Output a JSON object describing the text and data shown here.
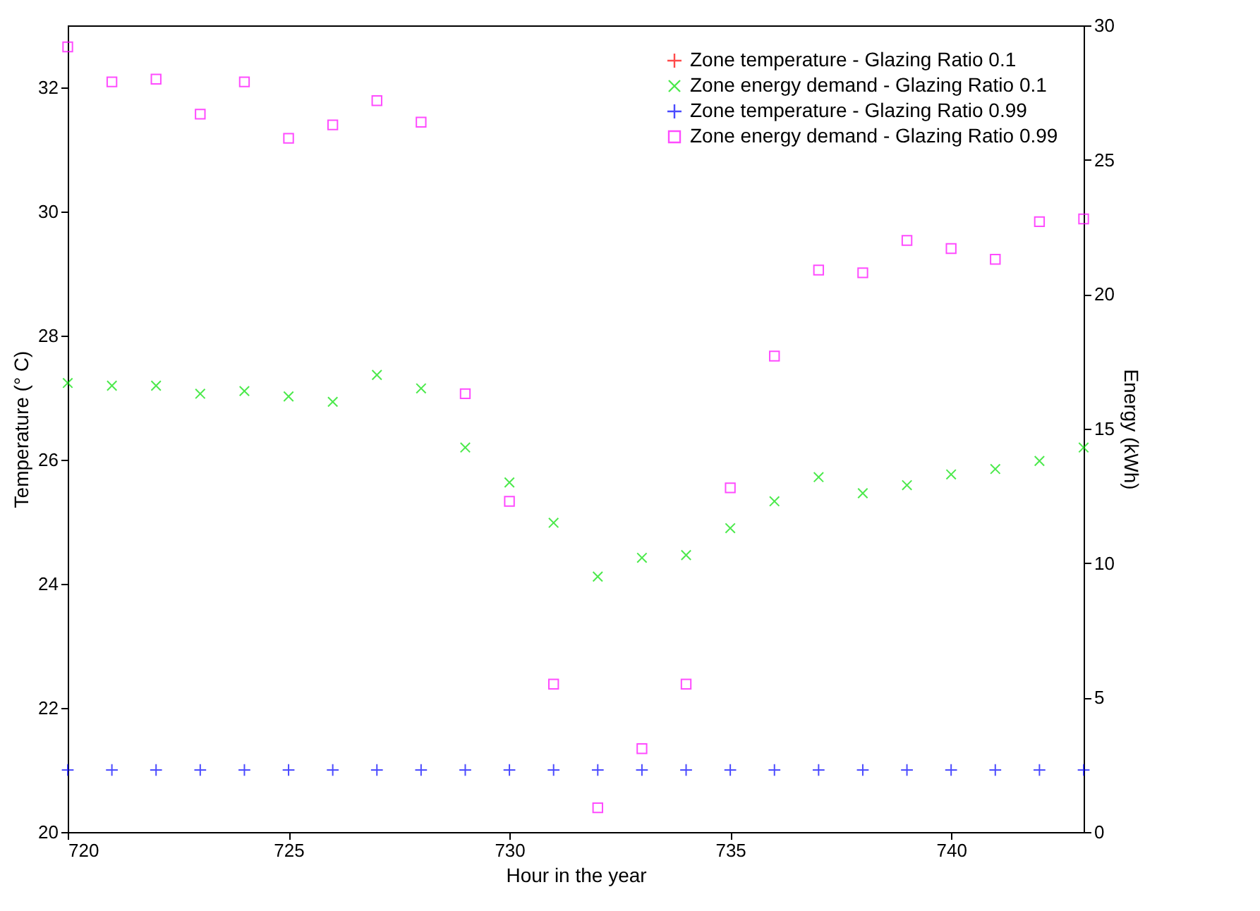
{
  "chart_data": {
    "type": "scatter",
    "xlabel": "Hour in the year",
    "ylabel": "Temperature (° C)",
    "y2label": "Energy (kWh)",
    "x": [
      720,
      721,
      722,
      723,
      724,
      725,
      726,
      727,
      728,
      729,
      730,
      731,
      732,
      733,
      734,
      735,
      736,
      737,
      738,
      739,
      740,
      741,
      742,
      743
    ],
    "xlim": [
      720,
      743
    ],
    "xticks": [
      720,
      725,
      730,
      735,
      740
    ],
    "ylim": [
      20,
      33
    ],
    "yticks": [
      20,
      22,
      24,
      26,
      28,
      30,
      32
    ],
    "y2lim": [
      0,
      30
    ],
    "y2ticks": [
      0,
      5,
      10,
      15,
      20,
      25,
      30
    ],
    "legend": "top right",
    "grid": false,
    "series": [
      {
        "name": "Zone temperature - Glazing Ratio 0.1",
        "color": "#ff0000",
        "marker": "cross",
        "axis": "y",
        "values": [
          null,
          null,
          null,
          null,
          null,
          null,
          null,
          null,
          null,
          null,
          null,
          null,
          null,
          null,
          null,
          null,
          null,
          null,
          null,
          null,
          null,
          null,
          null,
          null
        ]
      },
      {
        "name": "Zone energy demand - Glazing Ratio 0.1",
        "color": "#00e000",
        "marker": "x",
        "axis": "y2",
        "values": [
          16.7,
          16.6,
          16.6,
          16.3,
          16.4,
          16.2,
          16.0,
          17.0,
          16.5,
          14.3,
          13.0,
          11.5,
          9.5,
          10.2,
          10.3,
          11.3,
          12.3,
          13.2,
          12.6,
          12.9,
          13.3,
          13.5,
          13.8,
          14.3
        ]
      },
      {
        "name": "Zone temperature - Glazing Ratio 0.99",
        "color": "#0000ff",
        "marker": "cross",
        "axis": "y",
        "values": [
          21,
          21,
          21,
          21,
          21,
          21,
          21,
          21,
          21,
          21,
          21,
          21,
          21,
          21,
          21,
          21,
          21,
          21,
          21,
          21,
          21,
          21,
          21,
          21
        ]
      },
      {
        "name": "Zone energy demand - Glazing Ratio 0.99",
        "color": "#ff00ff",
        "marker": "square",
        "axis": "y2",
        "values": [
          29.2,
          27.9,
          28.0,
          26.7,
          27.9,
          25.8,
          26.3,
          27.2,
          26.4,
          16.3,
          12.3,
          5.5,
          0.9,
          3.1,
          5.5,
          12.8,
          17.7,
          20.9,
          20.8,
          22.0,
          21.7,
          21.3,
          22.7,
          22.8
        ]
      }
    ]
  }
}
